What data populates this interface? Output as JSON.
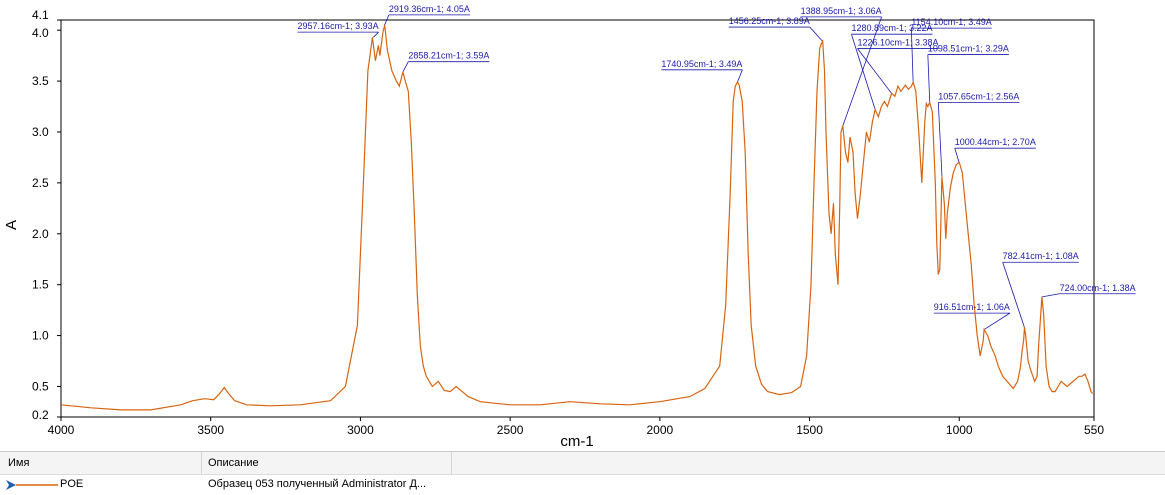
{
  "chart_data": {
    "type": "line",
    "xlabel": "cm-1",
    "ylabel": "A",
    "xlim": [
      4000,
      550
    ],
    "ylim": [
      0.2,
      4.1
    ],
    "x_reversed": true,
    "grid": false,
    "x_ticks": [
      4000,
      3500,
      3000,
      2500,
      2000,
      1500,
      1000,
      550
    ],
    "y_ticks": [
      0.2,
      0.5,
      1.0,
      1.5,
      2.0,
      2.5,
      3.0,
      3.5,
      4.0,
      4.1
    ],
    "x_tick_labels": [
      "4000",
      "3500",
      "3000",
      "2500",
      "2000",
      "1500",
      "1000",
      "550"
    ],
    "y_tick_labels": [
      "0.2",
      "0.5",
      "1.0",
      "1.5",
      "2.0",
      "2.5",
      "3.0",
      "3.5",
      "4.0",
      "4.1"
    ],
    "line_color": "#d86410",
    "annotation_color": "#1a1ab0",
    "series": [
      {
        "name": "POE",
        "x": [
          4000,
          3900,
          3800,
          3700,
          3600,
          3560,
          3520,
          3490,
          3470,
          3455,
          3440,
          3420,
          3380,
          3300,
          3200,
          3100,
          3050,
          3010,
          2990,
          2975,
          2960,
          2950,
          2940,
          2935,
          2925,
          2919,
          2910,
          2895,
          2880,
          2870,
          2858,
          2850,
          2840,
          2830,
          2820,
          2810,
          2800,
          2790,
          2780,
          2770,
          2760,
          2740,
          2720,
          2700,
          2680,
          2660,
          2640,
          2600,
          2500,
          2400,
          2300,
          2200,
          2100,
          2000,
          1900,
          1850,
          1800,
          1780,
          1765,
          1755,
          1748,
          1741,
          1735,
          1725,
          1715,
          1705,
          1695,
          1680,
          1660,
          1640,
          1600,
          1560,
          1530,
          1510,
          1495,
          1485,
          1475,
          1466,
          1460,
          1456,
          1450,
          1445,
          1435,
          1428,
          1420,
          1414,
          1405,
          1399,
          1395,
          1389,
          1380,
          1372,
          1365,
          1355,
          1348,
          1340,
          1330,
          1320,
          1310,
          1300,
          1290,
          1281,
          1270,
          1260,
          1250,
          1240,
          1226,
          1215,
          1205,
          1195,
          1180,
          1170,
          1160,
          1154,
          1145,
          1135,
          1125,
          1115,
          1110,
          1105,
          1099,
          1090,
          1080,
          1075,
          1070,
          1065,
          1058,
          1050,
          1045,
          1040,
          1030,
          1020,
          1010,
          1000,
          990,
          980,
          970,
          960,
          950,
          940,
          930,
          920,
          917,
          905,
          895,
          880,
          870,
          855,
          840,
          820,
          805,
          795,
          790,
          785,
          782,
          778,
          770,
          760,
          748,
          740,
          735,
          728,
          724,
          718,
          710,
          700,
          690,
          680,
          670,
          660,
          640,
          620,
          600,
          590,
          580,
          570,
          560,
          555
        ],
        "y": [
          0.32,
          0.29,
          0.27,
          0.27,
          0.32,
          0.36,
          0.38,
          0.37,
          0.43,
          0.49,
          0.43,
          0.36,
          0.32,
          0.31,
          0.32,
          0.36,
          0.5,
          1.1,
          2.5,
          3.6,
          3.93,
          3.7,
          3.85,
          3.75,
          3.98,
          4.05,
          3.8,
          3.6,
          3.5,
          3.45,
          3.59,
          3.5,
          3.4,
          2.9,
          2.2,
          1.4,
          0.9,
          0.7,
          0.6,
          0.55,
          0.5,
          0.55,
          0.46,
          0.45,
          0.5,
          0.45,
          0.4,
          0.35,
          0.32,
          0.32,
          0.35,
          0.33,
          0.32,
          0.35,
          0.4,
          0.48,
          0.7,
          1.3,
          2.4,
          3.3,
          3.45,
          3.49,
          3.46,
          3.3,
          2.8,
          1.8,
          1.1,
          0.7,
          0.52,
          0.45,
          0.42,
          0.44,
          0.5,
          0.8,
          1.5,
          2.5,
          3.4,
          3.82,
          3.87,
          3.89,
          3.6,
          3.0,
          2.2,
          2.0,
          2.3,
          1.8,
          1.5,
          2.3,
          3.0,
          3.06,
          2.8,
          2.7,
          2.95,
          2.8,
          2.4,
          2.15,
          2.4,
          2.7,
          3.0,
          2.9,
          3.1,
          3.22,
          3.15,
          3.25,
          3.3,
          3.25,
          3.38,
          3.35,
          3.45,
          3.4,
          3.46,
          3.42,
          3.45,
          3.49,
          3.4,
          3.0,
          2.5,
          3.1,
          3.28,
          3.25,
          3.29,
          3.2,
          2.5,
          1.9,
          1.6,
          1.65,
          2.56,
          2.3,
          1.95,
          2.2,
          2.45,
          2.6,
          2.68,
          2.7,
          2.6,
          2.3,
          2.0,
          1.7,
          1.3,
          1.0,
          0.8,
          0.95,
          1.06,
          1.0,
          0.9,
          0.8,
          0.7,
          0.6,
          0.55,
          0.48,
          0.55,
          0.7,
          0.85,
          0.95,
          1.08,
          1.0,
          0.75,
          0.65,
          0.55,
          0.6,
          0.9,
          1.2,
          1.38,
          1.2,
          0.7,
          0.5,
          0.45,
          0.45,
          0.5,
          0.55,
          0.5,
          0.55,
          0.6,
          0.6,
          0.62,
          0.55,
          0.45,
          0.43
        ]
      }
    ],
    "annotations": [
      {
        "label": "2957.16cm-1; 3.93A",
        "x": 2957.16,
        "y": 3.93,
        "text_x": 3210,
        "text_y": 4.01,
        "anchor": "start"
      },
      {
        "label": "2919.36cm-1; 4.05A",
        "x": 2919.36,
        "y": 4.05,
        "text_x": 2905,
        "text_y": 4.18,
        "anchor": "start"
      },
      {
        "label": "2858.21cm-1; 3.59A",
        "x": 2858.21,
        "y": 3.59,
        "text_x": 2840,
        "text_y": 3.72,
        "anchor": "start"
      },
      {
        "label": "1740.95cm-1; 3.49A",
        "x": 1740.95,
        "y": 3.49,
        "text_x": 1995,
        "text_y": 3.64,
        "anchor": "start"
      },
      {
        "label": "1456.25cm-1; 3.89A",
        "x": 1456.25,
        "y": 3.89,
        "text_x": 1770,
        "text_y": 4.06,
        "anchor": "start"
      },
      {
        "label": "1388.95cm-1; 3.06A",
        "x": 1388.95,
        "y": 3.06,
        "text_x": 1530,
        "text_y": 4.16,
        "anchor": "start"
      },
      {
        "label": "1280.89cm-1; 3.22A",
        "x": 1280.89,
        "y": 3.22,
        "text_x": 1360,
        "text_y": 3.99,
        "anchor": "start"
      },
      {
        "label": "1226.10cm-1; 3.38A",
        "x": 1226.1,
        "y": 3.38,
        "text_x": 1340,
        "text_y": 3.85,
        "anchor": "start"
      },
      {
        "label": "1154.10cm-1; 3.49A",
        "x": 1154.1,
        "y": 3.49,
        "text_x": 1160,
        "text_y": 4.05,
        "anchor": "start"
      },
      {
        "label": "1098.51cm-1; 3.29A",
        "x": 1098.51,
        "y": 3.29,
        "text_x": 1105,
        "text_y": 3.79,
        "anchor": "start"
      },
      {
        "label": "1057.65cm-1; 2.56A",
        "x": 1057.65,
        "y": 2.56,
        "text_x": 1070,
        "text_y": 3.32,
        "anchor": "start"
      },
      {
        "label": "1000.44cm-1; 2.70A",
        "x": 1000.44,
        "y": 2.7,
        "text_x": 1015,
        "text_y": 2.87,
        "anchor": "start"
      },
      {
        "label": "916.51cm-1; 1.06A",
        "x": 916.51,
        "y": 1.06,
        "text_x": 1085,
        "text_y": 1.25,
        "anchor": "start"
      },
      {
        "label": "782.41cm-1; 1.08A",
        "x": 782.41,
        "y": 1.08,
        "text_x": 855,
        "text_y": 1.75,
        "anchor": "start"
      },
      {
        "label": "724.00cm-1; 1.38A",
        "x": 724.0,
        "y": 1.38,
        "text_x": 665,
        "text_y": 1.44,
        "anchor": "start"
      }
    ]
  },
  "legend": {
    "col_name": "Имя",
    "col_desc": "Описание",
    "row_name": "POE",
    "row_desc": "Образец 053 полученный Administrator Д..."
  }
}
